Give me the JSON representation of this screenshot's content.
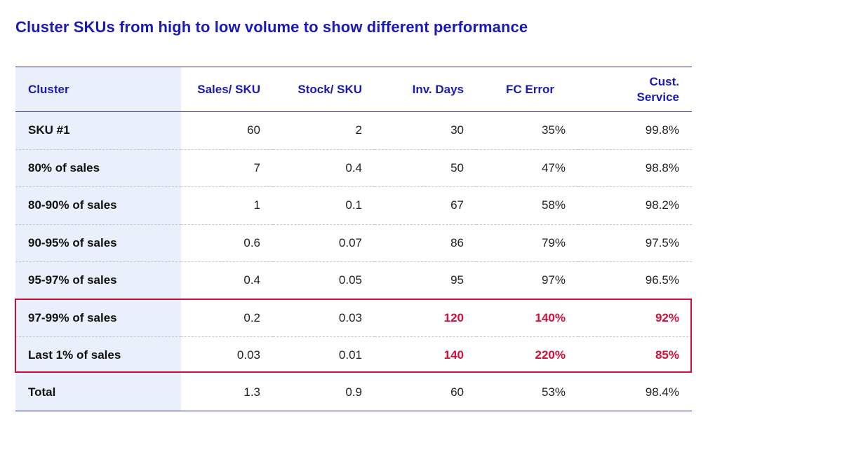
{
  "title": "Cluster SKUs from high to low volume to show different performance",
  "table": {
    "headers": [
      "Cluster",
      "Sales/ SKU",
      "Stock/ SKU",
      "Inv. Days",
      "FC Error",
      "Cust. Service"
    ],
    "rows": [
      {
        "cells": [
          "SKU #1",
          "60",
          "2",
          "30",
          "35%",
          "99.8%"
        ]
      },
      {
        "cells": [
          "80% of sales",
          "7",
          "0.4",
          "50",
          "47%",
          "98.8%"
        ]
      },
      {
        "cells": [
          "80-90% of sales",
          "1",
          "0.1",
          "67",
          "58%",
          "98.2%"
        ]
      },
      {
        "cells": [
          "90-95% of sales",
          "0.6",
          "0.07",
          "86",
          "79%",
          "97.5%"
        ]
      },
      {
        "cells": [
          "95-97% of sales",
          "0.4",
          "0.05",
          "95",
          "97%",
          "96.5%"
        ]
      },
      {
        "cells": [
          "97-99% of sales",
          "0.2",
          "0.03",
          "120",
          "140%",
          "92%"
        ]
      },
      {
        "cells": [
          "Last 1% of sales",
          "0.03",
          "0.01",
          "140",
          "220%",
          "85%"
        ]
      },
      {
        "cells": [
          "Total",
          "1.3",
          "0.9",
          "60",
          "53%",
          "98.4%"
        ]
      }
    ]
  },
  "colors": {
    "title": "#1a1ab4",
    "highlight": "#d0103a",
    "first_column_bg": "#e9f0fb",
    "rule": "#2b2f8a"
  }
}
